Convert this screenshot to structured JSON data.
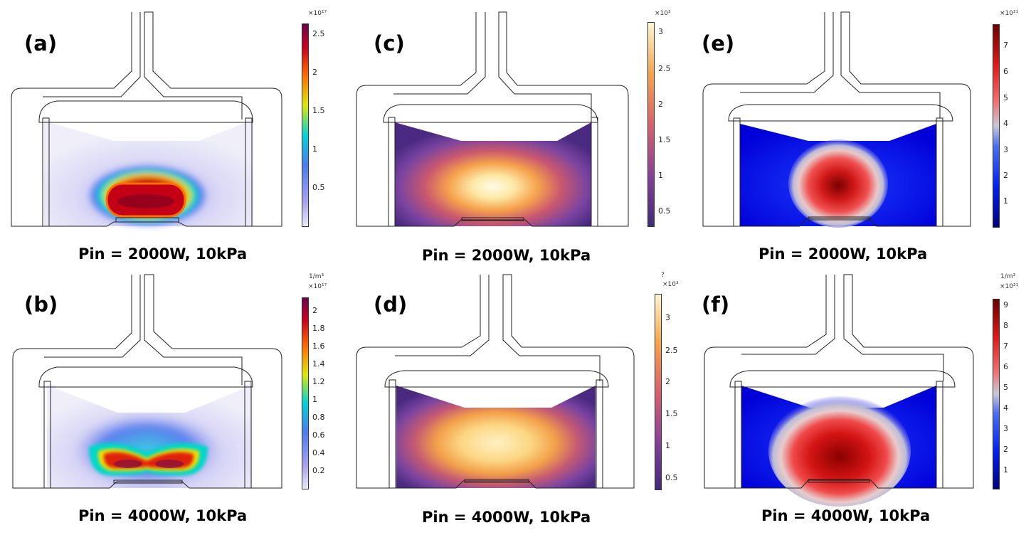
{
  "figure": {
    "panels": [
      {
        "label": "(a)",
        "caption": "Pin = 2000W, 10kPa",
        "colormap": "jet",
        "pattern": "blob",
        "colorbar": {
          "unit": "",
          "exponent": "×10¹⁷",
          "ticks": [
            "2.5",
            "2",
            "1.5",
            "1",
            "0.5"
          ]
        }
      },
      {
        "label": "(b)",
        "caption": "Pin = 4000W, 10kPa",
        "colormap": "jet",
        "pattern": "smile",
        "colorbar": {
          "unit": "1/m³",
          "exponent": "×10¹⁷",
          "ticks": [
            "2",
            "1.8",
            "1.6",
            "1.4",
            "1.2",
            "1",
            "0.8",
            "0.6",
            "0.4",
            "0.2"
          ]
        }
      },
      {
        "label": "(c)",
        "caption": "Pin = 2000W, 10kPa",
        "colormap": "thermal",
        "pattern": "glow",
        "colorbar": {
          "unit": "",
          "exponent": "×10³",
          "ticks": [
            "3",
            "2.5",
            "2",
            "1.5",
            "1",
            "0.5"
          ]
        }
      },
      {
        "label": "(d)",
        "caption": "Pin = 4000W, 10kPa",
        "colormap": "thermal",
        "pattern": "wide",
        "colorbar": {
          "unit": "?",
          "exponent": "×10³",
          "ticks": [
            "3",
            "2.5",
            "2",
            "1.5",
            "1",
            "0.5"
          ]
        }
      },
      {
        "label": "(e)",
        "caption": "Pin = 2000W, 10kPa",
        "colormap": "rainbow-diverging",
        "pattern": "round",
        "colorbar": {
          "unit": "",
          "exponent": "×10²¹",
          "ticks": [
            "7",
            "6",
            "5",
            "4",
            "3",
            "2",
            "1"
          ]
        }
      },
      {
        "label": "(f)",
        "caption": "Pin = 4000W, 10kPa",
        "colormap": "rainbow-diverging",
        "pattern": "dome",
        "colorbar": {
          "unit": "1/m³",
          "exponent": "×10²¹",
          "ticks": [
            "9",
            "8",
            "7",
            "6",
            "5",
            "4",
            "3",
            "2",
            "1"
          ]
        }
      }
    ]
  }
}
